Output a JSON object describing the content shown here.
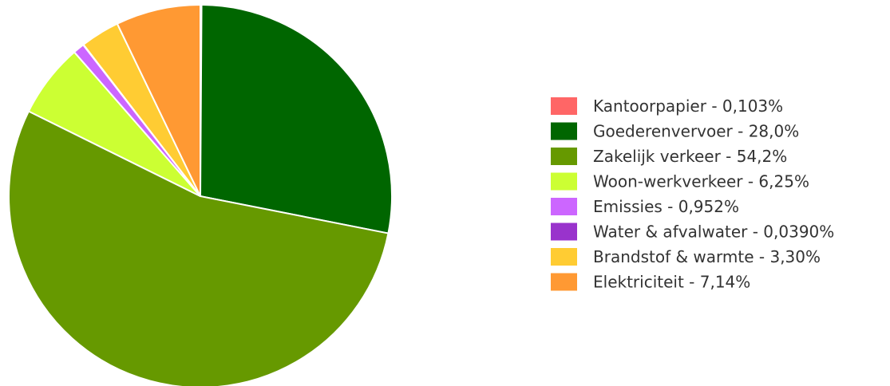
{
  "chart_data": {
    "type": "pie",
    "title": "",
    "legend_position": "right",
    "start_angle_deg": 0,
    "direction": "clockwise",
    "slices": [
      {
        "name": "Kantoorpapier",
        "value": 0.103,
        "label": "Kantoorpapier - 0,103%",
        "color": "#ff6666"
      },
      {
        "name": "Goederenvervoer",
        "value": 28.0,
        "label": "Goederenvervoer - 28,0%",
        "color": "#006600"
      },
      {
        "name": "Zakelijk verkeer",
        "value": 54.2,
        "label": "Zakelijk verkeer - 54,2%",
        "color": "#669900"
      },
      {
        "name": "Woon-werkverkeer",
        "value": 6.25,
        "label": "Woon-werkverkeer - 6,25%",
        "color": "#ccff33"
      },
      {
        "name": "Emissies",
        "value": 0.952,
        "label": "Emissies - 0,952%",
        "color": "#cc66ff"
      },
      {
        "name": "Water & afvalwater",
        "value": 0.039,
        "label": "Water & afvalwater - 0,0390%",
        "color": "#9933cc"
      },
      {
        "name": "Brandstof & warmte",
        "value": 3.3,
        "label": "Brandstof & warmte - 3,30%",
        "color": "#ffcc33"
      },
      {
        "name": "Elektriciteit",
        "value": 7.14,
        "label": "Elektriciteit - 7,14%",
        "color": "#ff9933"
      }
    ]
  }
}
